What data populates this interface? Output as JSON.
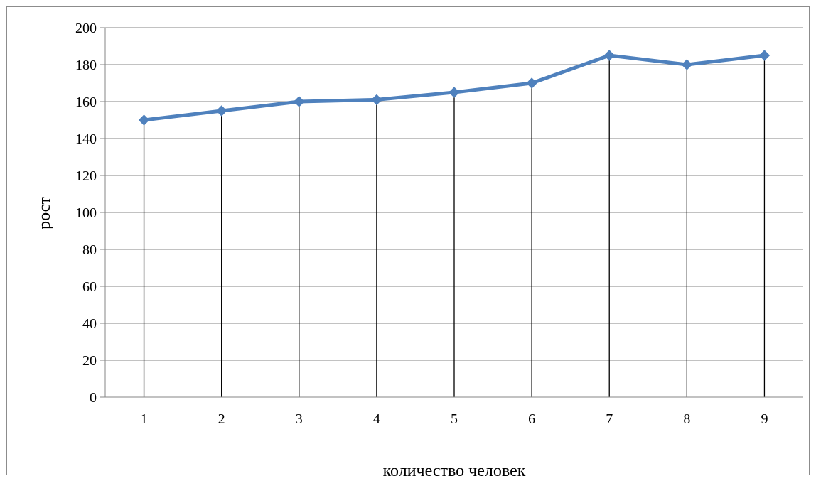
{
  "chart_data": {
    "type": "line",
    "title": "",
    "xlabel": "количество человек",
    "ylabel": "рост",
    "categories": [
      "1",
      "2",
      "3",
      "4",
      "5",
      "6",
      "7",
      "8",
      "9"
    ],
    "series": [
      {
        "values": [
          150,
          155,
          160,
          161,
          165,
          170,
          185,
          180,
          185
        ],
        "color": "#4f81bd"
      }
    ],
    "ylim": [
      0,
      200
    ],
    "yticks": [
      "0",
      "20",
      "40",
      "60",
      "80",
      "100",
      "120",
      "140",
      "160",
      "180",
      "200"
    ],
    "grid": "horizontal",
    "drop_lines": true,
    "marker": "diamond",
    "legend": "none"
  }
}
